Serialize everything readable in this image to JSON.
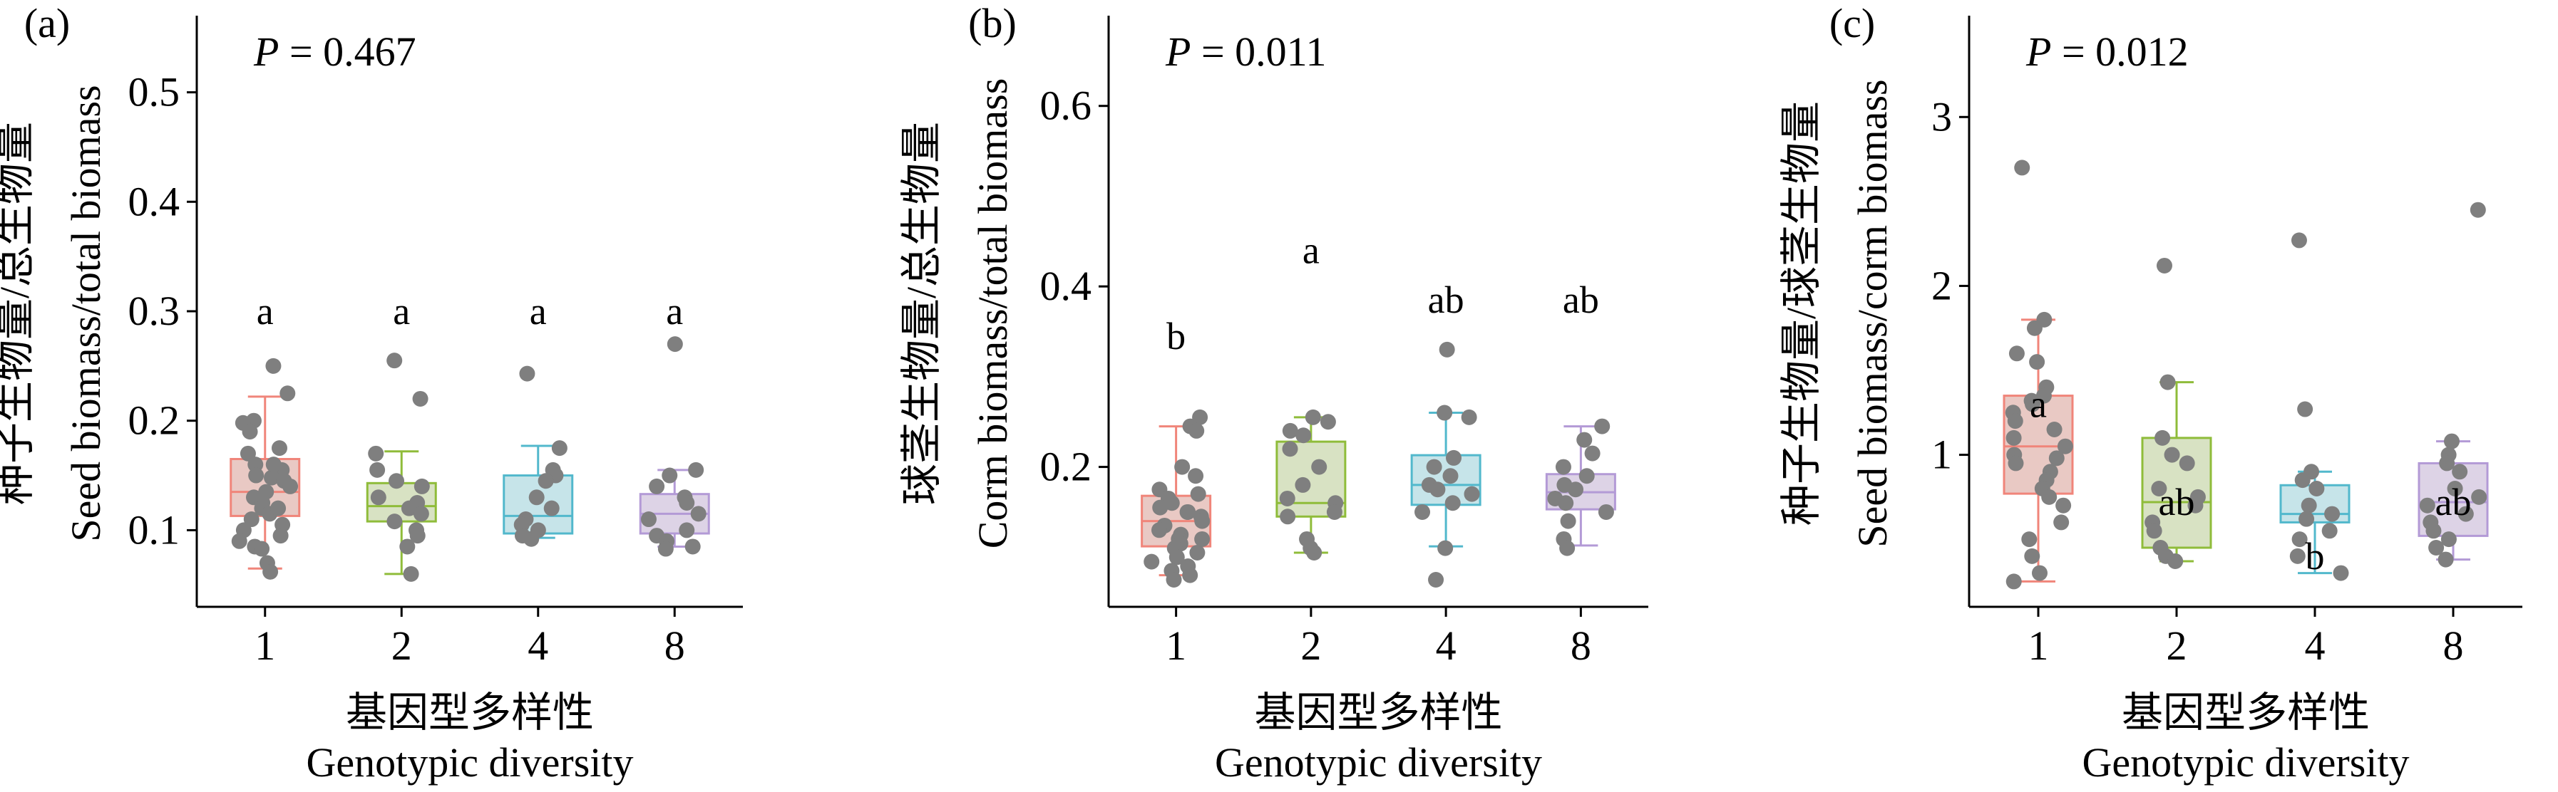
{
  "x_categories": [
    "1",
    "2",
    "4",
    "8"
  ],
  "x_label_cn": "基因型多样性",
  "x_label_en": "Genotypic diversity",
  "colors": {
    "box_fills": [
      "#e9c9c4",
      "#d8e2c3",
      "#c6e4e9",
      "#ddd3e6"
    ],
    "box_strokes": [
      "#f0857a",
      "#8fbc3a",
      "#52b8cc",
      "#b39ad6"
    ],
    "points": "#7f7f7f"
  },
  "chart_data": [
    {
      "type": "box",
      "panel_label": "(a)",
      "p_value_label": "P",
      "p_value_text": " = 0.467",
      "ylabel_cn": "种子生物量/总生物量",
      "ylabel_en": "Seed biomass/total biomass",
      "categories": [
        "1",
        "2",
        "4",
        "8"
      ],
      "ylim": [
        0.03,
        0.57
      ],
      "yticks": [
        0.1,
        0.2,
        0.3,
        0.4,
        0.5
      ],
      "ytick_labels": [
        "0.1",
        "0.2",
        "0.3",
        "0.4",
        "0.5"
      ],
      "letters": [
        "a",
        "a",
        "a",
        "a"
      ],
      "letter_y": [
        0.3,
        0.3,
        0.3,
        0.3
      ],
      "boxes": [
        {
          "whisker_low": 0.065,
          "q1": 0.113,
          "median": 0.135,
          "q3": 0.165,
          "whisker_high": 0.222
        },
        {
          "whisker_low": 0.06,
          "q1": 0.108,
          "median": 0.122,
          "q3": 0.143,
          "whisker_high": 0.172
        },
        {
          "whisker_low": 0.093,
          "q1": 0.097,
          "median": 0.113,
          "q3": 0.15,
          "whisker_high": 0.177
        },
        {
          "whisker_low": 0.085,
          "q1": 0.097,
          "median": 0.115,
          "q3": 0.133,
          "whisker_high": 0.155
        }
      ],
      "points": [
        [
          0.25,
          0.225,
          0.2,
          0.198,
          0.19,
          0.175,
          0.17,
          0.16,
          0.155,
          0.15,
          0.148,
          0.145,
          0.14,
          0.135,
          0.13,
          0.125,
          0.12,
          0.115,
          0.11,
          0.105,
          0.1,
          0.095,
          0.09,
          0.085,
          0.083,
          0.07,
          0.062,
          0.16,
          0.12
        ],
        [
          0.255,
          0.22,
          0.17,
          0.155,
          0.145,
          0.14,
          0.13,
          0.125,
          0.12,
          0.115,
          0.108,
          0.1,
          0.095,
          0.085,
          0.06
        ],
        [
          0.243,
          0.175,
          0.155,
          0.15,
          0.145,
          0.13,
          0.12,
          0.11,
          0.105,
          0.1,
          0.095,
          0.092
        ],
        [
          0.27,
          0.155,
          0.15,
          0.14,
          0.13,
          0.125,
          0.115,
          0.11,
          0.1,
          0.095,
          0.09,
          0.085,
          0.083
        ]
      ]
    },
    {
      "type": "box",
      "panel_label": "(b)",
      "p_value_label": "P",
      "p_value_text": " = 0.011",
      "ylabel_cn": "球茎生物量/总生物量",
      "ylabel_en": "Corm biomass/total biomass",
      "categories": [
        "1",
        "2",
        "4",
        "8"
      ],
      "ylim": [
        0.045,
        0.7
      ],
      "yticks": [
        0.2,
        0.4,
        0.6
      ],
      "ytick_labels": [
        "0.2",
        "0.4",
        "0.6"
      ],
      "letters": [
        "b",
        "a",
        "ab",
        "ab"
      ],
      "letter_y": [
        0.345,
        0.44,
        0.385,
        0.385
      ],
      "boxes": [
        {
          "whisker_low": 0.08,
          "q1": 0.112,
          "median": 0.14,
          "q3": 0.168,
          "whisker_high": 0.245
        },
        {
          "whisker_low": 0.105,
          "q1": 0.145,
          "median": 0.16,
          "q3": 0.228,
          "whisker_high": 0.255
        },
        {
          "whisker_low": 0.112,
          "q1": 0.158,
          "median": 0.18,
          "q3": 0.213,
          "whisker_high": 0.26
        },
        {
          "whisker_low": 0.113,
          "q1": 0.153,
          "median": 0.172,
          "q3": 0.192,
          "whisker_high": 0.245
        }
      ],
      "points": [
        [
          0.255,
          0.245,
          0.24,
          0.2,
          0.19,
          0.175,
          0.17,
          0.165,
          0.16,
          0.155,
          0.15,
          0.145,
          0.14,
          0.135,
          0.13,
          0.125,
          0.12,
          0.115,
          0.11,
          0.105,
          0.1,
          0.095,
          0.09,
          0.085,
          0.08,
          0.075,
          0.15,
          0.12
        ],
        [
          0.255,
          0.25,
          0.24,
          0.235,
          0.22,
          0.2,
          0.18,
          0.165,
          0.16,
          0.15,
          0.145,
          0.12,
          0.11,
          0.105
        ],
        [
          0.33,
          0.26,
          0.255,
          0.21,
          0.2,
          0.19,
          0.18,
          0.175,
          0.17,
          0.16,
          0.15,
          0.11,
          0.075
        ],
        [
          0.245,
          0.23,
          0.215,
          0.2,
          0.19,
          0.18,
          0.175,
          0.165,
          0.16,
          0.15,
          0.14,
          0.12,
          0.11
        ]
      ]
    },
    {
      "type": "box",
      "panel_label": "(c)",
      "p_value_label": "P",
      "p_value_text": " = 0.012",
      "ylabel_cn": "种子生物量/球茎生物量",
      "ylabel_en": "Seed biomass/corm biomass",
      "categories": [
        "1",
        "2",
        "4",
        "8"
      ],
      "ylim": [
        0.1,
        3.6
      ],
      "yticks": [
        1,
        2,
        3
      ],
      "ytick_labels": [
        "1",
        "2",
        "3"
      ],
      "letters": [
        "a",
        "ab",
        "b",
        "ab"
      ],
      "letter_y": [
        1.3,
        0.72,
        0.4,
        0.72
      ],
      "boxes": [
        {
          "whisker_low": 0.25,
          "q1": 0.77,
          "median": 1.05,
          "q3": 1.35,
          "whisker_high": 1.8
        },
        {
          "whisker_low": 0.37,
          "q1": 0.45,
          "median": 0.72,
          "q3": 1.1,
          "whisker_high": 1.43
        },
        {
          "whisker_low": 0.3,
          "q1": 0.6,
          "median": 0.65,
          "q3": 0.82,
          "whisker_high": 0.9
        },
        {
          "whisker_low": 0.38,
          "q1": 0.52,
          "median": 0.72,
          "q3": 0.95,
          "whisker_high": 1.08
        }
      ],
      "points": [
        [
          2.7,
          1.8,
          1.75,
          1.6,
          1.55,
          1.4,
          1.35,
          1.3,
          1.25,
          1.2,
          1.15,
          1.1,
          1.05,
          1.0,
          0.95,
          0.9,
          0.85,
          0.8,
          0.75,
          0.7,
          0.6,
          0.5,
          0.4,
          0.3,
          0.25,
          1.32,
          0.98
        ],
        [
          2.12,
          1.43,
          1.1,
          1.0,
          0.95,
          0.8,
          0.75,
          0.7,
          0.6,
          0.55,
          0.45,
          0.4,
          0.37
        ],
        [
          2.27,
          1.27,
          0.9,
          0.85,
          0.8,
          0.7,
          0.65,
          0.62,
          0.55,
          0.5,
          0.4,
          0.3
        ],
        [
          2.45,
          1.08,
          1.0,
          0.95,
          0.9,
          0.8,
          0.75,
          0.7,
          0.65,
          0.6,
          0.55,
          0.5,
          0.45,
          0.38
        ]
      ]
    }
  ]
}
